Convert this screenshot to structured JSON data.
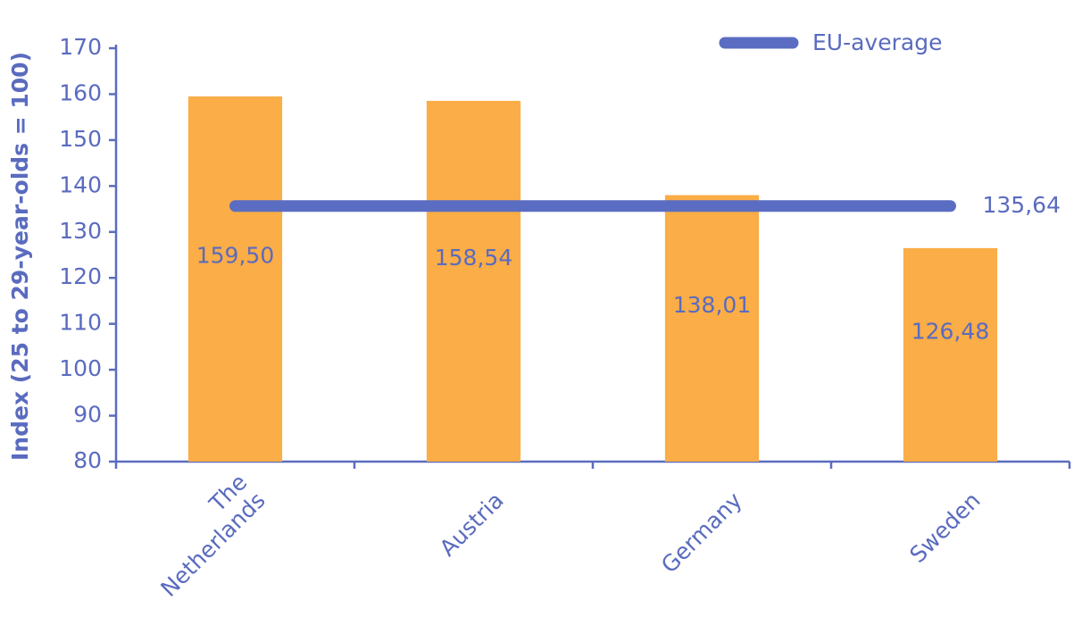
{
  "chart_data": {
    "type": "bar",
    "y_label": "Index (25 to 29-year-olds = 100)",
    "categories": [
      "The Netherlands",
      "Austria",
      "Germany",
      "Sweden"
    ],
    "values": [
      159.5,
      158.54,
      138.01,
      126.48
    ],
    "value_labels": [
      "159,50",
      "158,54",
      "138,01",
      "126,48"
    ],
    "color": "#fbad47",
    "line": {
      "name": "EU-average",
      "value": 135.64,
      "value_label": "135,64",
      "color": "#5a6dc2"
    },
    "ylim": [
      80,
      170
    ],
    "yticks": [
      80,
      90,
      100,
      110,
      120,
      130,
      140,
      150,
      160,
      170
    ],
    "grid": false,
    "legend": "top-right"
  }
}
